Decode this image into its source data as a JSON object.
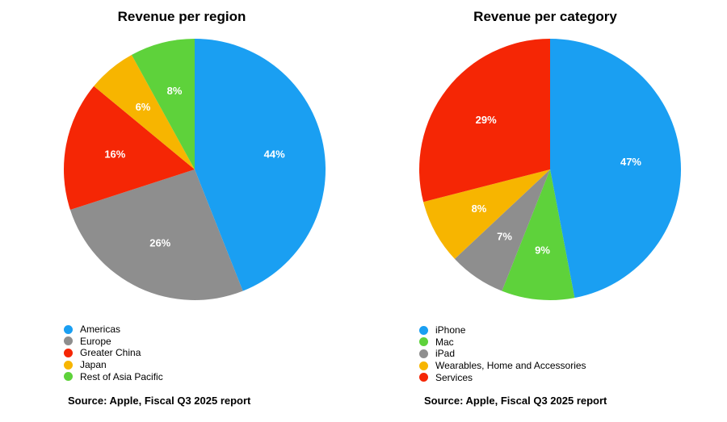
{
  "chart_data": [
    {
      "type": "pie",
      "title": "Revenue per region",
      "categories": [
        "Americas",
        "Europe",
        "Greater China",
        "Japan",
        "Rest of Asia Pacific"
      ],
      "values": [
        44,
        26,
        16,
        6,
        8
      ],
      "labels": [
        "44%",
        "26%",
        "16%",
        "6%",
        "8%"
      ],
      "colors": [
        "#1a9ff2",
        "#8e8e8e",
        "#f52605",
        "#f7b500",
        "#5ed23b"
      ],
      "slice_order": [
        "Americas",
        "Europe",
        "Greater China",
        "Japan",
        "Rest of Asia Pacific"
      ],
      "start": "12 o'clock, clockwise",
      "legend": "bottom-left",
      "source": "Source: Apple, Fiscal Q3 2025 report"
    },
    {
      "type": "pie",
      "title": "Revenue per category",
      "categories": [
        "iPhone",
        "Mac",
        "iPad",
        "Wearables, Home and Accessories",
        "Services"
      ],
      "values": [
        47,
        9,
        7,
        8,
        29
      ],
      "labels": [
        "47%",
        "9%",
        "7%",
        "8%",
        "29%"
      ],
      "colors": [
        "#1a9ff2",
        "#5ed23b",
        "#8e8e8e",
        "#f7b500",
        "#f52605"
      ],
      "start": "12 o'clock, clockwise",
      "legend": "bottom-left",
      "source": "Source: Apple, Fiscal Q3 2025 report"
    }
  ]
}
